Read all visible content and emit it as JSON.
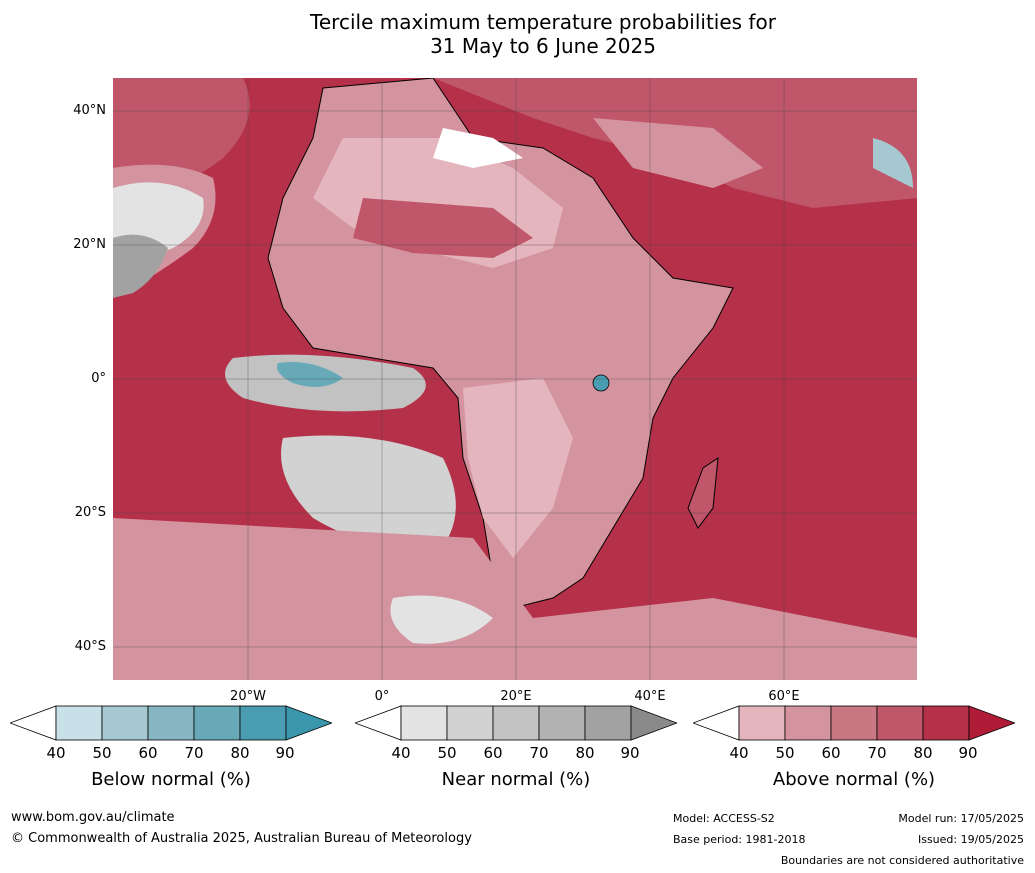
{
  "title": {
    "line1": "Tercile maximum temperature probabilities for",
    "line2": "31 May to 6 June 2025"
  },
  "map": {
    "lat_labels": [
      "40°N",
      "20°N",
      "0°",
      "20°S",
      "40°S"
    ],
    "lon_labels": [
      "20°W",
      "0°",
      "20°E",
      "40°E",
      "60°E"
    ]
  },
  "colorbars": [
    {
      "title": "Below normal (%)",
      "ticks": [
        "40",
        "50",
        "60",
        "70",
        "80",
        "90"
      ],
      "colors": [
        "#ffffff",
        "#c8e0e8",
        "#a5c8d1",
        "#86b6c2",
        "#67a9b7",
        "#4a9cb0",
        "#3a97ad"
      ]
    },
    {
      "title": "Near normal (%)",
      "ticks": [
        "40",
        "50",
        "60",
        "70",
        "80",
        "90"
      ],
      "colors": [
        "#ffffff",
        "#e3e3e3",
        "#d2d2d2",
        "#c2c2c2",
        "#b2b2b2",
        "#a2a2a2",
        "#8a8a8a"
      ]
    },
    {
      "title": "Above normal (%)",
      "ticks": [
        "40",
        "50",
        "60",
        "70",
        "80",
        "90"
      ],
      "colors": [
        "#ffffff",
        "#e4b5bd",
        "#d4949f",
        "#c97782",
        "#c0566a",
        "#b53149",
        "#b01c38"
      ]
    }
  ],
  "footer": {
    "url": "www.bom.gov.au/climate",
    "copyright": "© Commonwealth of Australia 2025, Australian Bureau of Meteorology",
    "model": "Model: ACCESS-S2",
    "base_period": "Base period: 1981-2018",
    "model_run": "Model run: 17/05/2025",
    "issued": "Issued: 19/05/2025",
    "disclaimer": "Boundaries are not considered authoritative"
  }
}
